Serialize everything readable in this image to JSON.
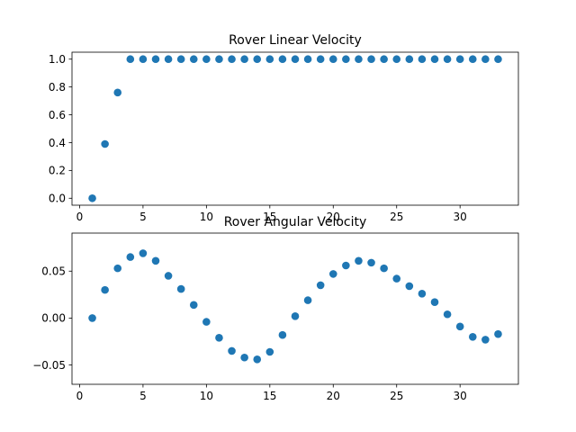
{
  "chart_data": [
    {
      "type": "scatter",
      "title": "Rover Linear Velocity",
      "xlabel": "",
      "ylabel": "",
      "xlim": [
        -0.6,
        34.6
      ],
      "ylim": [
        -0.05,
        1.05
      ],
      "xticks": [
        0,
        5,
        10,
        15,
        20,
        25,
        30
      ],
      "xtick_labels": [
        "0",
        "5",
        "10",
        "15",
        "20",
        "25",
        "30"
      ],
      "yticks": [
        0.0,
        0.2,
        0.4,
        0.6,
        0.8,
        1.0
      ],
      "ytick_labels": [
        "0.0",
        "0.2",
        "0.4",
        "0.6",
        "0.8",
        "1.0"
      ],
      "grid": false,
      "color": "#1f77b4",
      "x": [
        1,
        2,
        3,
        4,
        5,
        6,
        7,
        8,
        9,
        10,
        11,
        12,
        13,
        14,
        15,
        16,
        17,
        18,
        19,
        20,
        21,
        22,
        23,
        24,
        25,
        26,
        27,
        28,
        29,
        30,
        31,
        32,
        33
      ],
      "y": [
        0.0,
        0.39,
        0.76,
        1,
        1,
        1,
        1,
        1,
        1,
        1,
        1,
        1,
        1,
        1,
        1,
        1,
        1,
        1,
        1,
        1,
        1,
        1,
        1,
        1,
        1,
        1,
        1,
        1,
        1,
        1,
        1,
        1,
        1
      ]
    },
    {
      "type": "scatter",
      "title": "Rover Angular Velocity",
      "xlabel": "",
      "ylabel": "",
      "xlim": [
        -0.6,
        34.6
      ],
      "ylim": [
        -0.0705,
        0.0905
      ],
      "xticks": [
        0,
        5,
        10,
        15,
        20,
        25,
        30
      ],
      "xtick_labels": [
        "0",
        "5",
        "10",
        "15",
        "20",
        "25",
        "30"
      ],
      "yticks": [
        -0.05,
        0.0,
        0.05
      ],
      "ytick_labels": [
        "−0.05",
        "0.00",
        "0.05"
      ],
      "grid": false,
      "color": "#1f77b4",
      "x": [
        1,
        2,
        3,
        4,
        5,
        6,
        7,
        8,
        9,
        10,
        11,
        12,
        13,
        14,
        15,
        16,
        17,
        18,
        19,
        20,
        21,
        22,
        23,
        24,
        25,
        26,
        27,
        28,
        29,
        30,
        31,
        32,
        33
      ],
      "y": [
        0.0,
        0.03,
        0.053,
        0.065,
        0.069,
        0.061,
        0.045,
        0.031,
        0.014,
        -0.004,
        -0.021,
        -0.035,
        -0.042,
        -0.044,
        -0.036,
        -0.018,
        0.002,
        0.019,
        0.035,
        0.047,
        0.056,
        0.061,
        0.059,
        0.053,
        0.042,
        0.034,
        0.026,
        0.017,
        0.004,
        -0.009,
        -0.02,
        -0.023,
        -0.017
      ]
    }
  ]
}
